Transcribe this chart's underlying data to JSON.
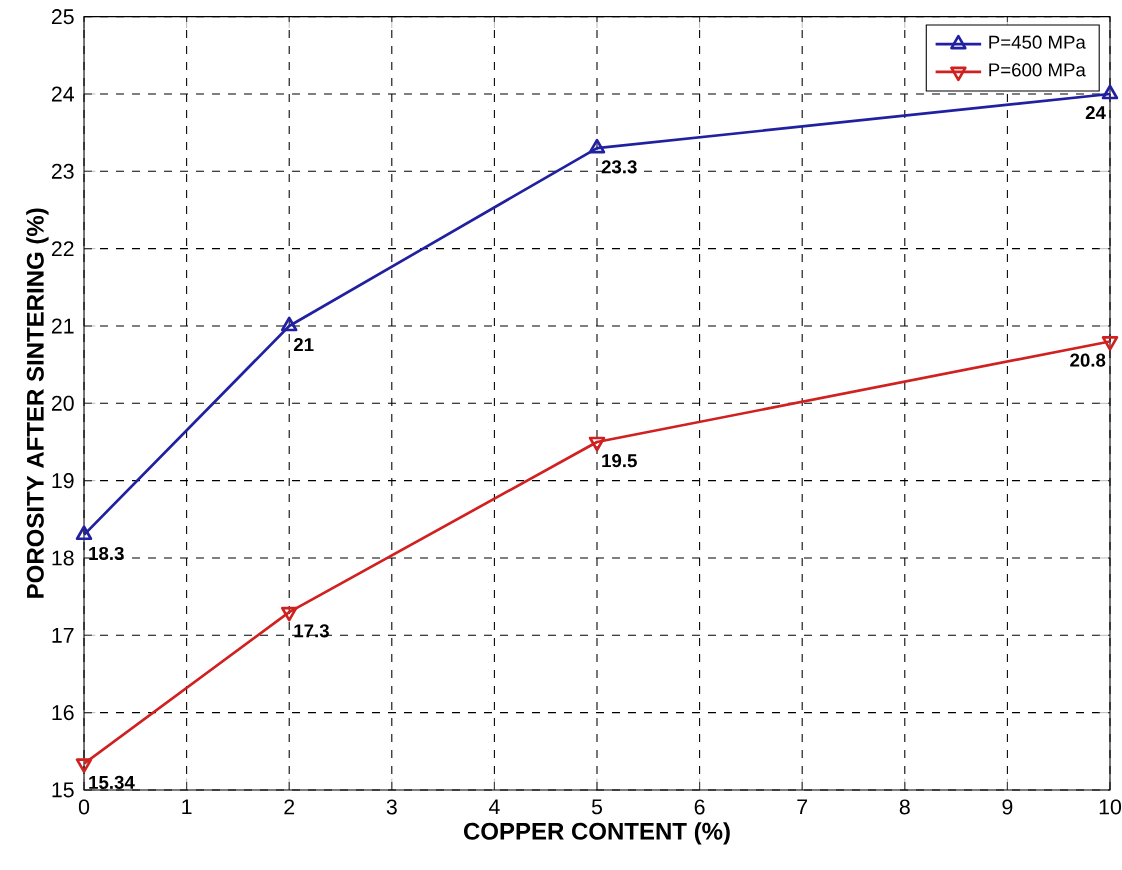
{
  "chart_data": {
    "type": "line",
    "xlabel": "COPPER CONTENT (%)",
    "ylabel": "POROSITY AFTER SINTERING (%)",
    "x": [
      0,
      2,
      5,
      10
    ],
    "series": [
      {
        "name": "P=450 MPa",
        "color": "#2020a0",
        "marker": "triangle",
        "values": [
          18.3,
          21,
          23.3,
          24
        ]
      },
      {
        "name": "P=600 MPa",
        "color": "#d02020",
        "marker": "triangle-down",
        "values": [
          15.34,
          17.3,
          19.5,
          20.8
        ]
      }
    ],
    "xlim": [
      0,
      10
    ],
    "xticks": [
      0,
      1,
      2,
      3,
      4,
      5,
      6,
      7,
      8,
      9,
      10
    ],
    "ylim": [
      15,
      25
    ],
    "yticks": [
      15,
      16,
      17,
      18,
      19,
      20,
      21,
      22,
      23,
      24,
      25
    ],
    "grid": true,
    "legend": "top right",
    "data_labels": true,
    "line_style": "solid"
  }
}
